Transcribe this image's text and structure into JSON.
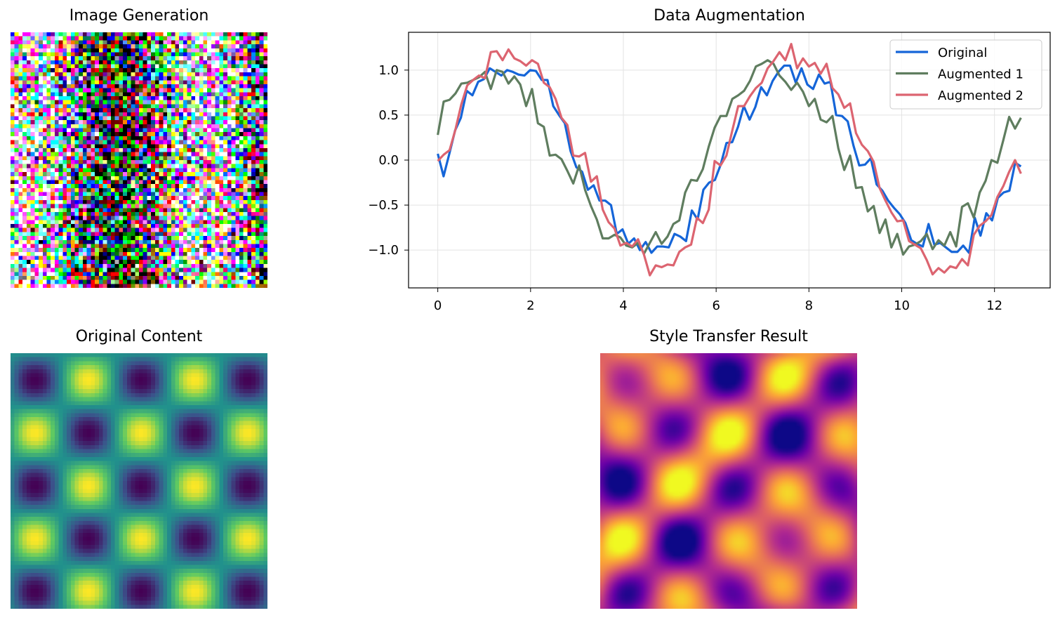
{
  "panels": {
    "image_generation": {
      "title": "Image Generation"
    },
    "original_content": {
      "title": "Original Content"
    },
    "style_transfer": {
      "title": "Style Transfer Result"
    }
  },
  "chart_data": {
    "type": "line",
    "title": "Data Augmentation",
    "xlabel": "",
    "ylabel": "",
    "xlim": [
      -0.63,
      13.2
    ],
    "ylim": [
      -1.42,
      1.42
    ],
    "xticks": [
      0,
      2,
      4,
      6,
      8,
      10,
      12
    ],
    "xtick_labels": [
      "0",
      "2",
      "4",
      "6",
      "8",
      "10",
      "12"
    ],
    "yticks": [
      -1.0,
      -0.5,
      0.0,
      0.5,
      1.0
    ],
    "ytick_labels": [
      "−1.0",
      "−0.5",
      "0.0",
      "0.5",
      "1.0"
    ],
    "grid": true,
    "legend": "top-right",
    "x_start": 0,
    "x_end": 12.57,
    "series": [
      {
        "name": "Original",
        "color": "#1565d8",
        "values": [
          0.07,
          -0.18,
          0.07,
          0.33,
          0.47,
          0.77,
          0.72,
          0.87,
          0.9,
          1.02,
          0.98,
          0.94,
          1.0,
          0.98,
          0.95,
          0.94,
          1.0,
          0.99,
          0.89,
          0.89,
          0.6,
          0.5,
          0.41,
          0.1,
          -0.08,
          -0.13,
          -0.33,
          -0.28,
          -0.45,
          -0.45,
          -0.5,
          -0.82,
          -0.77,
          -0.93,
          -0.87,
          -1.0,
          -0.91,
          -1.03,
          -0.96,
          -0.96,
          -0.97,
          -0.82,
          -0.85,
          -0.9,
          -0.56,
          -0.66,
          -0.33,
          -0.25,
          -0.22,
          -0.05,
          0.19,
          0.2,
          0.37,
          0.6,
          0.45,
          0.59,
          0.81,
          0.72,
          0.88,
          0.98,
          1.05,
          1.05,
          0.86,
          1.02,
          0.84,
          0.79,
          0.95,
          0.85,
          0.87,
          0.5,
          0.49,
          0.43,
          0.16,
          -0.06,
          -0.05,
          0.02,
          -0.27,
          -0.34,
          -0.45,
          -0.53,
          -0.6,
          -0.7,
          -0.89,
          -0.93,
          -0.96,
          -0.71,
          -0.94,
          -0.92,
          -0.97,
          -1.02,
          -1.02,
          -0.95,
          -1.03,
          -0.64,
          -0.84,
          -0.59,
          -0.67,
          -0.42,
          -0.36,
          -0.34,
          -0.03,
          -0.07
        ]
      },
      {
        "name": "Augmented 1",
        "color": "#5f7d5f",
        "values": [
          0.28,
          0.65,
          0.67,
          0.74,
          0.85,
          0.86,
          0.89,
          0.92,
          0.98,
          0.79,
          1.0,
          0.98,
          0.85,
          0.93,
          0.84,
          0.6,
          0.79,
          0.41,
          0.37,
          0.05,
          0.06,
          0.01,
          -0.12,
          -0.26,
          -0.06,
          -0.33,
          -0.51,
          -0.66,
          -0.87,
          -0.87,
          -0.83,
          -0.86,
          -0.95,
          -0.97,
          -0.92,
          -1.04,
          -0.92,
          -0.8,
          -0.93,
          -0.85,
          -0.71,
          -0.67,
          -0.36,
          -0.22,
          -0.23,
          -0.1,
          0.15,
          0.36,
          0.49,
          0.49,
          0.68,
          0.72,
          0.77,
          0.88,
          1.04,
          1.07,
          1.11,
          1.07,
          0.94,
          0.87,
          0.78,
          0.86,
          0.76,
          0.6,
          0.68,
          0.45,
          0.42,
          0.49,
          0.13,
          -0.11,
          0.05,
          -0.31,
          -0.3,
          -0.57,
          -0.51,
          -0.81,
          -0.66,
          -0.97,
          -0.82,
          -1.05,
          -0.96,
          -0.94,
          -0.9,
          -0.82,
          -0.99,
          -0.89,
          -0.95,
          -0.8,
          -0.96,
          -0.52,
          -0.48,
          -0.64,
          -0.36,
          -0.23,
          0.0,
          -0.03,
          0.22,
          0.48,
          0.35,
          0.47
        ]
      },
      {
        "name": "Augmented 2",
        "color": "#dc6470",
        "values": [
          -0.01,
          0.06,
          0.11,
          0.34,
          0.62,
          0.83,
          0.89,
          0.94,
          0.91,
          1.2,
          1.21,
          1.11,
          1.23,
          1.13,
          1.1,
          1.05,
          1.11,
          1.07,
          0.86,
          0.81,
          0.68,
          0.47,
          0.39,
          0.05,
          0.04,
          0.08,
          -0.24,
          -0.18,
          -0.55,
          -0.69,
          -0.76,
          -0.95,
          -0.92,
          -0.96,
          -0.88,
          -1.05,
          -1.28,
          -1.17,
          -1.19,
          -1.16,
          -1.17,
          -1.02,
          -0.97,
          -0.94,
          -0.64,
          -0.7,
          -0.55,
          -0.01,
          -0.06,
          0.05,
          0.33,
          0.6,
          0.6,
          0.71,
          0.8,
          0.86,
          1.02,
          1.1,
          1.2,
          1.11,
          1.29,
          1.02,
          1.13,
          1.04,
          1.08,
          0.96,
          1.07,
          0.8,
          0.73,
          0.58,
          0.63,
          0.3,
          0.17,
          0.1,
          -0.02,
          -0.31,
          -0.45,
          -0.58,
          -0.68,
          -0.67,
          -0.9,
          -0.94,
          -0.98,
          -1.11,
          -1.27,
          -1.2,
          -1.25,
          -1.18,
          -1.2,
          -1.1,
          -1.17,
          -0.83,
          -0.73,
          -0.68,
          -0.61,
          -0.41,
          -0.29,
          -0.13,
          0.0,
          -0.15
        ]
      }
    ]
  }
}
